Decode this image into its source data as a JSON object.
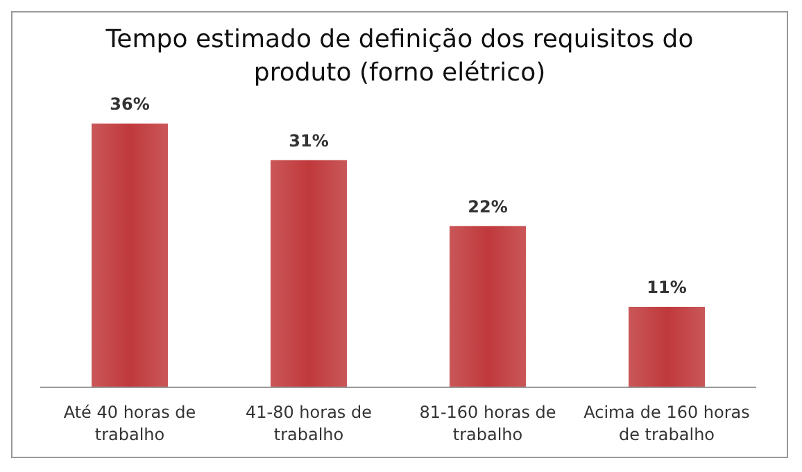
{
  "chart_data": {
    "type": "bar",
    "title": "Tempo estimado de definição dos requisitos do produto (forno elétrico)",
    "categories": [
      "Até 40 horas de trabalho",
      "41-80 horas de trabalho",
      "81-160 horas de trabalho",
      "Acima de 160 horas de trabalho"
    ],
    "values": [
      36,
      31,
      22,
      11
    ],
    "value_labels": [
      "36%",
      "31%",
      "22%",
      "11%"
    ],
    "color": "#c0393b",
    "grid": false,
    "legend": false
  }
}
